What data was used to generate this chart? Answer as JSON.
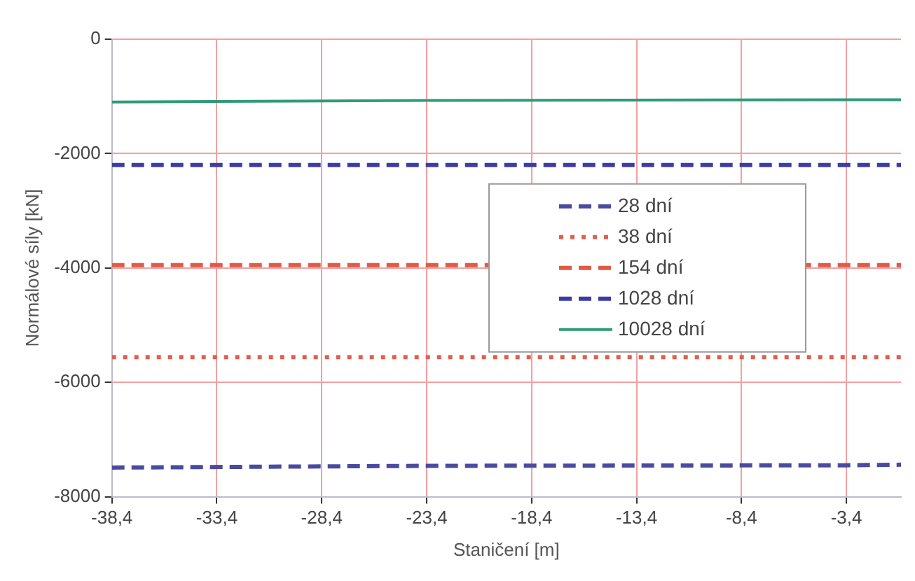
{
  "chart_data": {
    "type": "line",
    "xlabel": "Staničení [m]",
    "ylabel": "Normálové síly [kN]",
    "x": [
      -38.4,
      -28.4,
      -23.4,
      -3.4,
      -0.8
    ],
    "series": [
      {
        "name": "28 dní",
        "color": "#4a4aa0",
        "line_style": "dashed",
        "values": [
          -7490,
          -7470,
          -7460,
          -7450,
          -7440
        ]
      },
      {
        "name": "38 dní",
        "color": "#e06050",
        "line_style": "dotted",
        "values": [
          -5560,
          -5560,
          -5560,
          -5560,
          -5560
        ]
      },
      {
        "name": "154 dní",
        "color": "#e05a48",
        "line_style": "dashed",
        "values": [
          -3950,
          -3950,
          -3950,
          -3950,
          -3950
        ]
      },
      {
        "name": "1028 dní",
        "color": "#3c3ca8",
        "line_style": "dashed",
        "values": [
          -2200,
          -2200,
          -2200,
          -2200,
          -2200
        ]
      },
      {
        "name": "10028 dní",
        "color": "#2f9a7a",
        "line_style": "solid",
        "values": [
          -1100,
          -1080,
          -1070,
          -1060,
          -1060
        ]
      }
    ],
    "xlim": [
      -38.4,
      -0.8
    ],
    "xticks": [
      {
        "value": -38.4,
        "label": "-38,4"
      },
      {
        "value": -33.4,
        "label": "-33,4"
      },
      {
        "value": -28.4,
        "label": "-28,4"
      },
      {
        "value": -23.4,
        "label": "-23,4"
      },
      {
        "value": -18.4,
        "label": "-18,4"
      },
      {
        "value": -13.4,
        "label": "-13,4"
      },
      {
        "value": -8.4,
        "label": "-8,4"
      },
      {
        "value": -3.4,
        "label": "-3,4"
      }
    ],
    "ylim": [
      -8000,
      0
    ],
    "yticks": [
      -8000,
      -6000,
      -4000,
      -2000,
      0
    ],
    "grid": true,
    "legend": "center right",
    "marker": "none"
  }
}
